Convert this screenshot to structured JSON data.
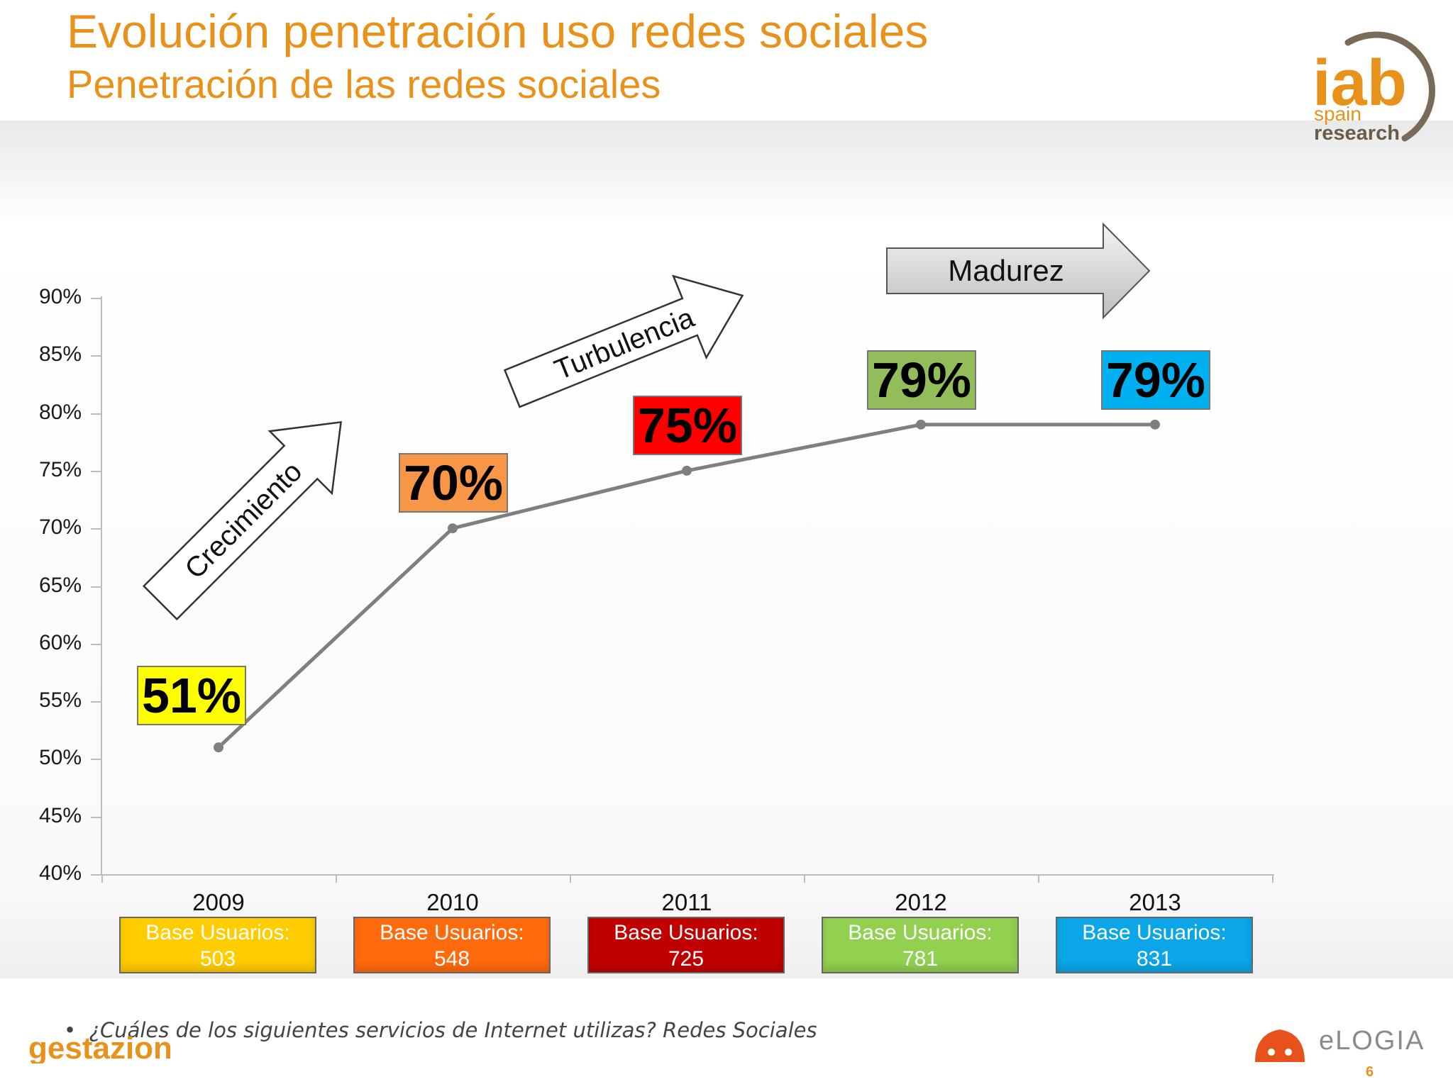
{
  "header": {
    "title": "Evolución penetración uso redes sociales",
    "subtitle": "Penetración de las redes sociales"
  },
  "logos": {
    "iab_main": "iab",
    "iab_line1": "spain",
    "iab_line2": "research",
    "elogia": "eLOGIA",
    "gestazion": "gestazion"
  },
  "phases": {
    "growth": "Crecimiento",
    "turbulence": "Turbulencia",
    "maturity": "Madurez"
  },
  "chart_data": {
    "type": "line",
    "categories": [
      "2009",
      "2010",
      "2011",
      "2012",
      "2013"
    ],
    "values": [
      51,
      70,
      75,
      79,
      79
    ],
    "value_labels": [
      "51%",
      "70%",
      "75%",
      "79%",
      "79%"
    ],
    "label_colors": [
      "#ffff00",
      "#f79646",
      "#ff0000",
      "#92bd5a",
      "#00b0f0"
    ],
    "line_color": "#7f7f7f",
    "ylim": [
      40,
      90
    ],
    "yticks": [
      "90%",
      "85%",
      "80%",
      "75%",
      "70%",
      "65%",
      "60%",
      "55%",
      "50%",
      "45%",
      "40%"
    ],
    "grid": false,
    "legend": "none"
  },
  "bases": [
    {
      "label": "Base Usuarios:",
      "value": "503",
      "color": "#ffcc00"
    },
    {
      "label": "Base Usuarios:",
      "value": "548",
      "color": "#ff6a0d"
    },
    {
      "label": "Base Usuarios:",
      "value": "725",
      "color": "#c00000"
    },
    {
      "label": "Base Usuarios:",
      "value": "781",
      "color": "#92d050"
    },
    {
      "label": "Base Usuarios:",
      "value": "831",
      "color": "#0aa6e8"
    }
  ],
  "footer": {
    "bullet": "•",
    "note": "¿Cuáles de los siguientes servicios de Internet utilizas?  Redes Sociales",
    "page_number": "6"
  }
}
